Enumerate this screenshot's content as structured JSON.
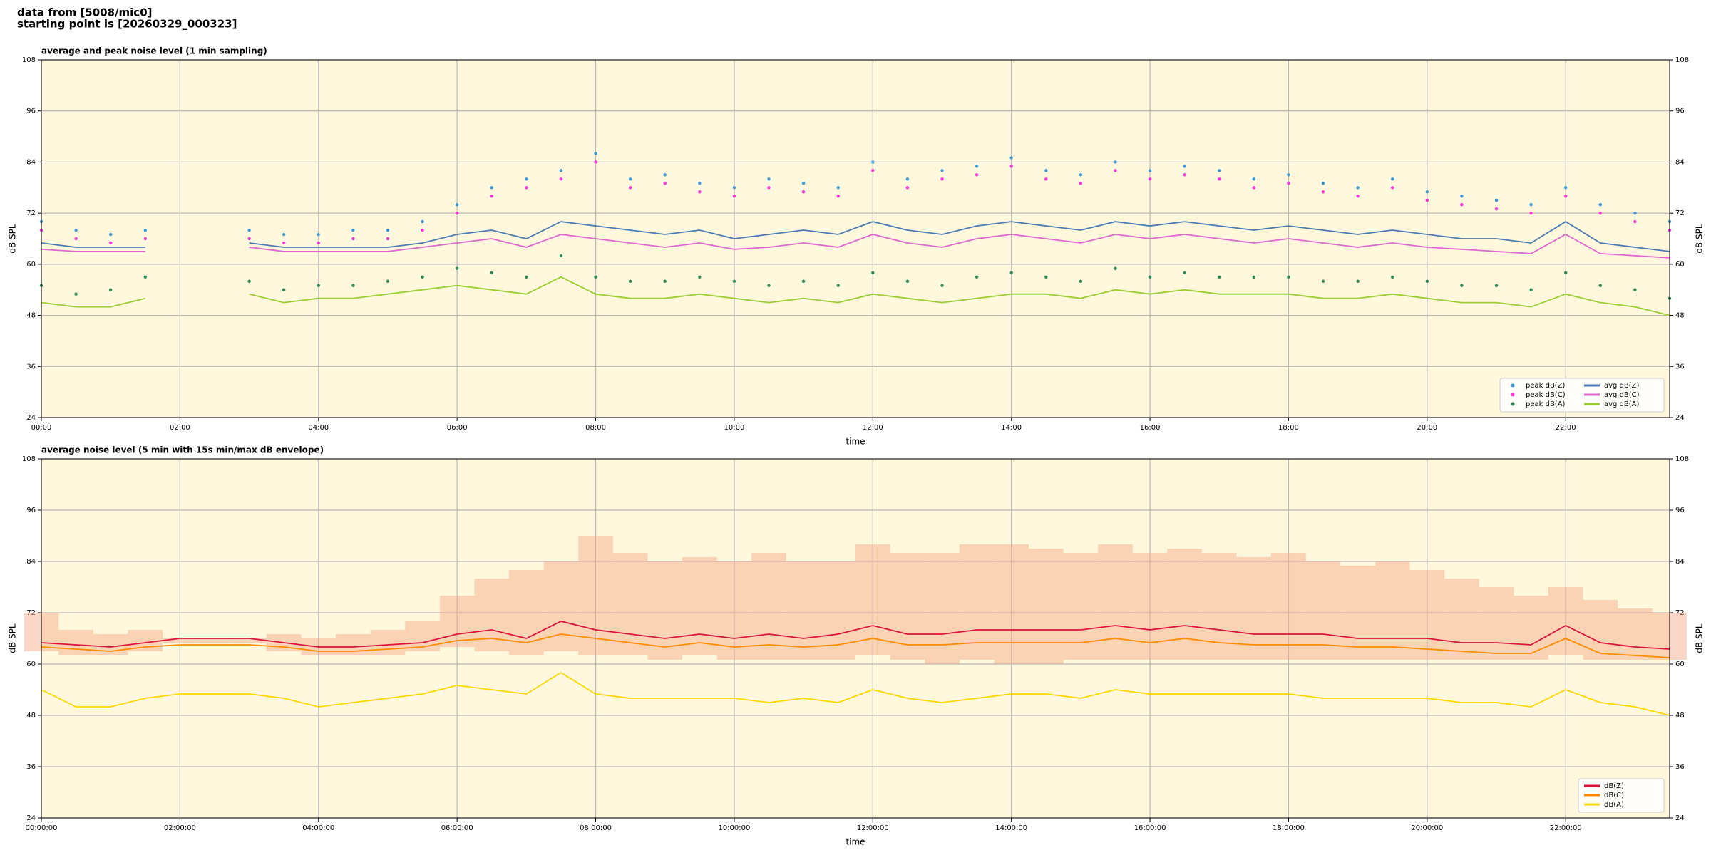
{
  "header": [
    "data from [5008/mic0]",
    "starting point is [20260329_000323]"
  ],
  "chart_data": [
    {
      "type": "line",
      "title": "average and peak noise level (1 min sampling)",
      "xlabel": "time",
      "ylabel": "dB SPL",
      "x": [
        "00:00",
        "00:30",
        "01:00",
        "01:30",
        "02:00",
        "02:30",
        "03:00",
        "03:30",
        "04:00",
        "04:30",
        "05:00",
        "05:30",
        "06:00",
        "06:30",
        "07:00",
        "07:30",
        "08:00",
        "08:30",
        "09:00",
        "09:30",
        "10:00",
        "10:30",
        "11:00",
        "11:30",
        "12:00",
        "12:30",
        "13:00",
        "13:30",
        "14:00",
        "14:30",
        "15:00",
        "15:30",
        "16:00",
        "16:30",
        "17:00",
        "17:30",
        "18:00",
        "18:30",
        "19:00",
        "19:30",
        "20:00",
        "20:30",
        "21:00",
        "21:30",
        "22:00",
        "22:30",
        "23:00",
        "23:30"
      ],
      "xticks": [
        "00:00",
        "02:00",
        "04:00",
        "06:00",
        "08:00",
        "10:00",
        "12:00",
        "14:00",
        "16:00",
        "18:00",
        "20:00",
        "22:00"
      ],
      "ylim": [
        24,
        108
      ],
      "yticks": [
        24,
        36,
        48,
        60,
        72,
        84,
        96,
        108
      ],
      "grid": true,
      "twin_y": true,
      "legend_loc": "lower right",
      "legend_ncol": 2,
      "series": [
        {
          "name": "peak dB(Z)",
          "type": "scatter",
          "color": "#3a9ad9",
          "values": [
            70,
            68,
            67,
            68,
            null,
            null,
            68,
            67,
            67,
            68,
            68,
            70,
            74,
            78,
            80,
            82,
            86,
            80,
            81,
            79,
            78,
            80,
            79,
            78,
            84,
            80,
            82,
            83,
            85,
            82,
            81,
            84,
            82,
            83,
            82,
            80,
            81,
            79,
            78,
            80,
            77,
            76,
            75,
            74,
            78,
            74,
            72,
            70
          ]
        },
        {
          "name": "peak dB(C)",
          "type": "scatter",
          "color": "#ff33dd",
          "values": [
            68,
            66,
            65,
            66,
            null,
            null,
            66,
            65,
            65,
            66,
            66,
            68,
            72,
            76,
            78,
            80,
            84,
            78,
            79,
            77,
            76,
            78,
            77,
            76,
            82,
            78,
            80,
            81,
            83,
            80,
            79,
            82,
            80,
            81,
            80,
            78,
            79,
            77,
            76,
            78,
            75,
            74,
            73,
            72,
            76,
            72,
            70,
            68
          ]
        },
        {
          "name": "peak dB(A)",
          "type": "scatter",
          "color": "#2e8b57",
          "values": [
            55,
            53,
            54,
            57,
            null,
            null,
            56,
            54,
            55,
            55,
            56,
            57,
            59,
            58,
            57,
            62,
            57,
            56,
            56,
            57,
            56,
            55,
            56,
            55,
            58,
            56,
            55,
            57,
            58,
            57,
            56,
            59,
            57,
            58,
            57,
            57,
            57,
            56,
            56,
            57,
            56,
            55,
            55,
            54,
            58,
            55,
            54,
            52
          ]
        },
        {
          "name": "avg dB(Z)",
          "type": "line",
          "color": "#4a7ab5",
          "values": [
            65,
            64,
            64,
            64,
            null,
            null,
            65,
            64,
            64,
            64,
            64,
            65,
            67,
            68,
            66,
            70,
            69,
            68,
            67,
            68,
            66,
            67,
            68,
            67,
            70,
            68,
            67,
            69,
            70,
            69,
            68,
            70,
            69,
            70,
            69,
            68,
            69,
            68,
            67,
            68,
            67,
            66,
            66,
            65,
            70,
            65,
            64,
            63
          ]
        },
        {
          "name": "avg dB(C)",
          "type": "line",
          "color": "#e066d0",
          "values": [
            63.5,
            63,
            63,
            63,
            null,
            null,
            64,
            63,
            63,
            63,
            63,
            64,
            65,
            66,
            64,
            67,
            66,
            65,
            64,
            65,
            63.5,
            64,
            65,
            64,
            67,
            65,
            64,
            66,
            67,
            66,
            65,
            67,
            66,
            67,
            66,
            65,
            66,
            65,
            64,
            65,
            64,
            63.5,
            63,
            62.5,
            67,
            62.5,
            62,
            61.5
          ]
        },
        {
          "name": "avg dB(A)",
          "type": "line",
          "color": "#9acd32",
          "values": [
            51,
            50,
            50,
            52,
            null,
            null,
            53,
            51,
            52,
            52,
            53,
            54,
            55,
            54,
            53,
            57,
            53,
            52,
            52,
            53,
            52,
            51,
            52,
            51,
            53,
            52,
            51,
            52,
            53,
            53,
            52,
            54,
            53,
            54,
            53,
            53,
            53,
            52,
            52,
            53,
            52,
            51,
            51,
            50,
            53,
            51,
            50,
            48
          ]
        }
      ]
    },
    {
      "type": "line",
      "title": "average noise level (5 min with 15s min/max dB envelope)",
      "xlabel": "time",
      "ylabel": "dB SPL",
      "x": [
        "00:00:00",
        "00:30:00",
        "01:00:00",
        "01:30:00",
        "02:00:00",
        "02:30:00",
        "03:00:00",
        "03:30:00",
        "04:00:00",
        "04:30:00",
        "05:00:00",
        "05:30:00",
        "06:00:00",
        "06:30:00",
        "07:00:00",
        "07:30:00",
        "08:00:00",
        "08:30:00",
        "09:00:00",
        "09:30:00",
        "10:00:00",
        "10:30:00",
        "11:00:00",
        "11:30:00",
        "12:00:00",
        "12:30:00",
        "13:00:00",
        "13:30:00",
        "14:00:00",
        "14:30:00",
        "15:00:00",
        "15:30:00",
        "16:00:00",
        "16:30:00",
        "17:00:00",
        "17:30:00",
        "18:00:00",
        "18:30:00",
        "19:00:00",
        "19:30:00",
        "20:00:00",
        "20:30:00",
        "21:00:00",
        "21:30:00",
        "22:00:00",
        "22:30:00",
        "23:00:00",
        "23:30:00"
      ],
      "xticks": [
        "00:00:00",
        "02:00:00",
        "04:00:00",
        "06:00:00",
        "08:00:00",
        "10:00:00",
        "12:00:00",
        "14:00:00",
        "16:00:00",
        "18:00:00",
        "20:00:00",
        "22:00:00"
      ],
      "ylim": [
        24,
        108
      ],
      "yticks": [
        24,
        36,
        48,
        60,
        72,
        84,
        96,
        108
      ],
      "grid": true,
      "twin_y": true,
      "legend_loc": "lower right",
      "legend_ncol": 1,
      "envelope": {
        "color": "#f4a582",
        "lower": [
          63,
          62,
          62,
          63,
          65,
          65,
          65,
          63,
          62,
          62,
          62,
          63,
          64,
          63,
          62,
          63,
          62,
          62,
          61,
          62,
          61,
          61,
          61,
          61,
          62,
          61,
          60,
          61,
          60,
          60,
          61,
          61,
          61,
          61,
          61,
          61,
          61,
          61,
          61,
          61,
          61,
          61,
          61,
          61,
          62,
          61,
          61,
          61
        ],
        "upper": [
          72,
          68,
          67,
          68,
          66,
          66,
          66,
          67,
          66,
          67,
          68,
          70,
          76,
          80,
          82,
          84,
          90,
          86,
          84,
          85,
          84,
          86,
          84,
          84,
          88,
          86,
          86,
          88,
          88,
          87,
          86,
          88,
          86,
          87,
          86,
          85,
          86,
          84,
          83,
          84,
          82,
          80,
          78,
          76,
          78,
          75,
          73,
          72
        ]
      },
      "series": [
        {
          "name": "dB(Z)",
          "type": "line",
          "color": "#dc143c",
          "values": [
            65,
            64.5,
            64,
            65,
            66,
            66,
            66,
            65,
            64,
            64,
            64.5,
            65,
            67,
            68,
            66,
            70,
            68,
            67,
            66,
            67,
            66,
            67,
            66,
            67,
            69,
            67,
            67,
            68,
            68,
            68,
            68,
            69,
            68,
            69,
            68,
            67,
            67,
            67,
            66,
            66,
            66,
            65,
            65,
            64.5,
            69,
            65,
            64,
            63.5
          ]
        },
        {
          "name": "dB(C)",
          "type": "line",
          "color": "#ff8c00",
          "values": [
            64,
            63.5,
            63,
            64,
            64.5,
            64.5,
            64.5,
            64,
            63,
            63,
            63.5,
            64,
            65.5,
            66,
            65,
            67,
            66,
            65,
            64,
            65,
            64,
            64.5,
            64,
            64.5,
            66,
            64.5,
            64.5,
            65,
            65,
            65,
            65,
            66,
            65,
            66,
            65,
            64.5,
            64.5,
            64.5,
            64,
            64,
            63.5,
            63,
            62.5,
            62.5,
            66,
            62.5,
            62,
            61.5
          ]
        },
        {
          "name": "dB(A)",
          "type": "line",
          "color": "#ffd700",
          "values": [
            54,
            50,
            50,
            52,
            53,
            53,
            53,
            52,
            50,
            51,
            52,
            53,
            55,
            54,
            53,
            58,
            53,
            52,
            52,
            52,
            52,
            51,
            52,
            51,
            54,
            52,
            51,
            52,
            53,
            53,
            52,
            54,
            53,
            53,
            53,
            53,
            53,
            52,
            52,
            52,
            52,
            51,
            51,
            50,
            54,
            51,
            50,
            48
          ]
        }
      ]
    }
  ]
}
